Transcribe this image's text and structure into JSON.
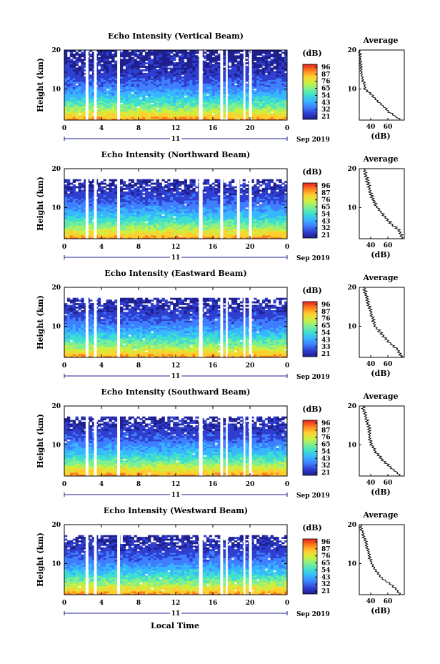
{
  "figure": {
    "date_label": "Sep 2019",
    "day_label": "11",
    "xlabel": "Local Time",
    "x_ticks": [
      "0",
      "4",
      "8",
      "12",
      "16",
      "20",
      "0"
    ],
    "y_ticks": [
      "20",
      "10"
    ],
    "ylabel": "Height (km)",
    "colorbar_unit": "(dB)",
    "colorbar_ticks": [
      "96",
      "87",
      "76",
      "65",
      "54",
      "43",
      "32",
      "21"
    ],
    "colorbar_ticks_alt": [
      "96",
      "87",
      "76",
      "65",
      "54",
      "43",
      "33",
      "21"
    ],
    "avg_title": "Average",
    "avg_xlabel": "(dB)",
    "avg_x_ticks": [
      "40",
      "60"
    ],
    "avg_y_ticks": [
      "20",
      "10"
    ]
  },
  "colors": {
    "scale": [
      "#1f1f8f",
      "#2f3fd0",
      "#3f7fff",
      "#37b7ff",
      "#3fdfcf",
      "#7fef8f",
      "#cfef3f",
      "#ffcf2f",
      "#ff7f1f",
      "#e71f1f"
    ]
  },
  "chart_data": [
    {
      "type": "heatmap",
      "title": "Echo Intensity (Vertical Beam)",
      "ylabel": "Height (km)",
      "xlim": [
        0,
        24
      ],
      "ylim": [
        2,
        20
      ],
      "colorbar_range_db": [
        21,
        96
      ],
      "colorbar_ticks": [
        96,
        87,
        76,
        65,
        54,
        43,
        32,
        21
      ],
      "data_gaps_hours": [
        [
          2.3,
          2.6
        ],
        [
          3.2,
          3.5
        ],
        [
          5.7,
          6.0
        ],
        [
          14.5,
          14.9
        ],
        [
          16.8,
          17.1
        ],
        [
          17.4,
          17.6
        ],
        [
          19.3,
          19.5
        ],
        [
          19.9,
          20.2
        ]
      ],
      "profile_heights_km": [
        2,
        4,
        6,
        8,
        10,
        12,
        14,
        16,
        18,
        20
      ],
      "profile_db": [
        72,
        60,
        52,
        44,
        36,
        34,
        32,
        32,
        31,
        30
      ],
      "avg_xlim": [
        30,
        75
      ]
    },
    {
      "type": "heatmap",
      "title": "Echo Intensity (Northward Beam)",
      "ylabel": "Height (km)",
      "xlim": [
        0,
        24
      ],
      "ylim": [
        2,
        20
      ],
      "colorbar_range_db": [
        21,
        96
      ],
      "colorbar_ticks": [
        96,
        87,
        76,
        65,
        54,
        43,
        32,
        21
      ],
      "data_gaps_hours": [
        [
          2.3,
          2.6
        ],
        [
          3.2,
          3.5
        ],
        [
          5.7,
          6.0
        ],
        [
          14.5,
          14.9
        ],
        [
          16.8,
          17.1
        ],
        [
          18.6,
          18.9
        ],
        [
          19.9,
          20.2
        ]
      ],
      "profile_heights_km": [
        2,
        4,
        6,
        8,
        10,
        12,
        14,
        16,
        18,
        20
      ],
      "profile_db": [
        58,
        56,
        48,
        42,
        36,
        32,
        30,
        28,
        26,
        24
      ],
      "avg_xlim": [
        20,
        60
      ]
    },
    {
      "type": "heatmap",
      "title": "Echo Intensity (Eastward Beam)",
      "ylabel": "Height (km)",
      "xlim": [
        0,
        24
      ],
      "ylim": [
        2,
        20
      ],
      "colorbar_range_db": [
        21,
        96
      ],
      "colorbar_ticks": [
        96,
        87,
        76,
        65,
        54,
        43,
        33,
        21
      ],
      "data_gaps_hours": [
        [
          2.3,
          2.6
        ],
        [
          3.2,
          3.5
        ],
        [
          5.7,
          6.0
        ],
        [
          14.5,
          14.9
        ],
        [
          16.8,
          17.1
        ],
        [
          17.4,
          17.6
        ],
        [
          19.3,
          19.5
        ],
        [
          19.9,
          20.2
        ]
      ],
      "profile_heights_km": [
        2,
        4,
        6,
        8,
        10,
        12,
        14,
        16,
        18,
        20
      ],
      "profile_db": [
        58,
        54,
        46,
        40,
        34,
        32,
        30,
        28,
        26,
        24
      ],
      "avg_xlim": [
        20,
        60
      ]
    },
    {
      "type": "heatmap",
      "title": "Echo Intensity (Southward Beam)",
      "ylabel": "Height (km)",
      "xlim": [
        0,
        24
      ],
      "ylim": [
        2,
        20
      ],
      "colorbar_range_db": [
        21,
        96
      ],
      "colorbar_ticks": [
        96,
        87,
        76,
        65,
        54,
        43,
        32,
        21
      ],
      "data_gaps_hours": [
        [
          2.3,
          2.6
        ],
        [
          3.2,
          3.5
        ],
        [
          5.7,
          6.0
        ],
        [
          14.5,
          14.9
        ],
        [
          16.8,
          17.1
        ],
        [
          17.4,
          17.6
        ],
        [
          19.3,
          19.5
        ],
        [
          19.9,
          20.2
        ]
      ],
      "profile_heights_km": [
        2,
        4,
        6,
        8,
        10,
        12,
        14,
        16,
        18,
        20
      ],
      "profile_db": [
        62,
        54,
        46,
        40,
        36,
        34,
        34,
        32,
        30,
        28
      ],
      "avg_xlim": [
        25,
        65
      ]
    },
    {
      "type": "heatmap",
      "title": "Echo Intensity (Westward Beam)",
      "ylabel": "Height (km)",
      "xlim": [
        0,
        24
      ],
      "ylim": [
        2,
        20
      ],
      "colorbar_range_db": [
        21,
        96
      ],
      "colorbar_ticks": [
        96,
        87,
        76,
        65,
        54,
        43,
        32,
        21
      ],
      "data_gaps_hours": [
        [
          2.3,
          2.6
        ],
        [
          3.2,
          3.5
        ],
        [
          5.7,
          6.0
        ],
        [
          14.5,
          14.9
        ],
        [
          16.8,
          17.1
        ],
        [
          17.4,
          17.6
        ],
        [
          19.3,
          19.5
        ],
        [
          19.9,
          20.2
        ]
      ],
      "profile_heights_km": [
        2,
        4,
        6,
        8,
        10,
        12,
        14,
        16,
        18,
        20
      ],
      "profile_db": [
        62,
        56,
        46,
        40,
        36,
        34,
        32,
        30,
        28,
        26
      ],
      "avg_xlim": [
        25,
        65
      ]
    }
  ]
}
